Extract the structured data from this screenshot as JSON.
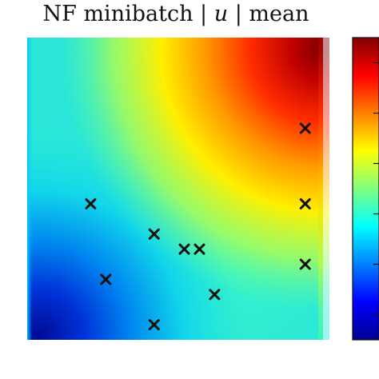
{
  "title": {
    "prefix": "NF minibatch | ",
    "variable": "u",
    "suffix": " | mean"
  },
  "chart_data": {
    "type": "heatmap",
    "title": "NF minibatch | u | mean",
    "xlabel": "",
    "ylabel": "",
    "xlim": [
      0,
      1
    ],
    "ylim": [
      0,
      1
    ],
    "colormap": "jet",
    "colorbar": {
      "placement": "right",
      "ticks_labeled": false,
      "tick_count": 6
    },
    "markers": {
      "symbol": "x",
      "color": "#111111",
      "points": [
        {
          "x": 0.21,
          "y": 0.45
        },
        {
          "x": 0.26,
          "y": 0.2
        },
        {
          "x": 0.42,
          "y": 0.35
        },
        {
          "x": 0.42,
          "y": 0.05
        },
        {
          "x": 0.52,
          "y": 0.3
        },
        {
          "x": 0.57,
          "y": 0.3
        },
        {
          "x": 0.62,
          "y": 0.15
        },
        {
          "x": 0.92,
          "y": 0.7
        },
        {
          "x": 0.92,
          "y": 0.45
        },
        {
          "x": 0.92,
          "y": 0.25
        }
      ]
    }
  }
}
